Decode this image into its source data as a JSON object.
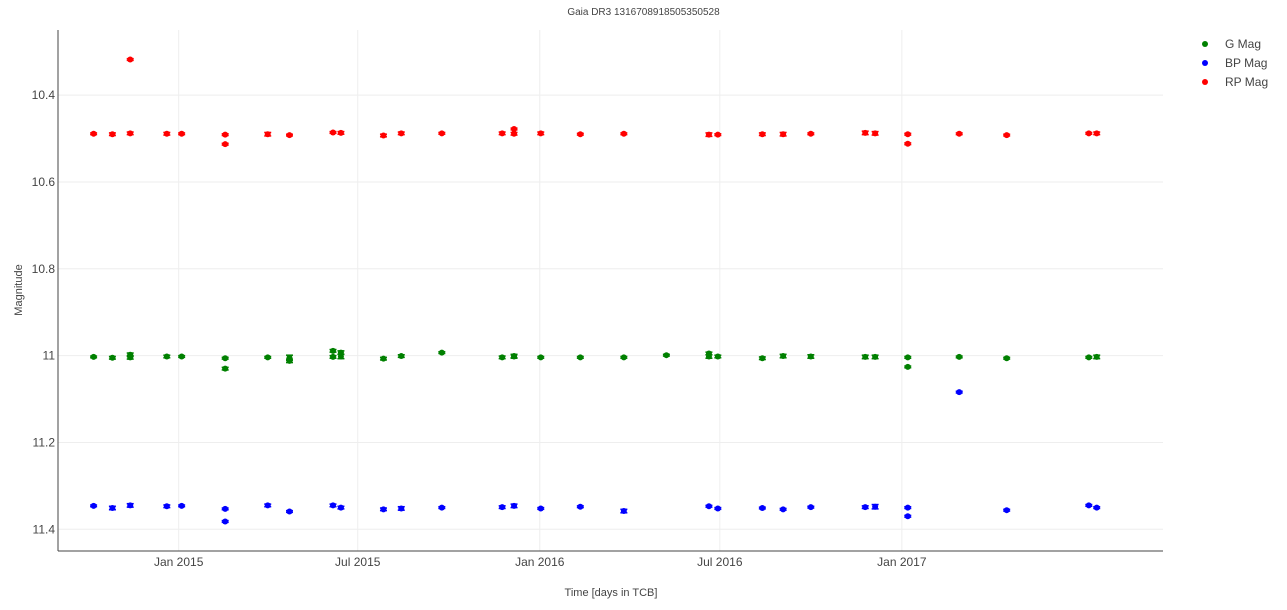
{
  "chart_data": {
    "type": "scatter",
    "title": "Gaia DR3 1316708918505350528",
    "xlabel": "Time [days in TCB]",
    "ylabel": "Magnitude",
    "x_axis_type": "date",
    "xlim": [
      "2014-09-01",
      "2017-09-22"
    ],
    "ylim": [
      11.45,
      10.25
    ],
    "y_reversed": true,
    "x_ticks": [
      {
        "value": "2015-01-01",
        "label": "Jan 2015"
      },
      {
        "value": "2015-07-01",
        "label": "Jul 2015"
      },
      {
        "value": "2016-01-01",
        "label": "Jan 2016"
      },
      {
        "value": "2016-07-01",
        "label": "Jul 2016"
      },
      {
        "value": "2017-01-01",
        "label": "Jan 2017"
      }
    ],
    "y_ticks": [
      {
        "value": 10.4,
        "label": "10.4"
      },
      {
        "value": 10.6,
        "label": "10.6"
      },
      {
        "value": 10.8,
        "label": "10.8"
      },
      {
        "value": 11,
        "label": "11"
      },
      {
        "value": 11.2,
        "label": "11.2"
      },
      {
        "value": 11.4,
        "label": "11.4"
      }
    ],
    "grid": true,
    "error_bars": true,
    "legend_position": "top-right",
    "series": [
      {
        "name": "G Mag",
        "color": "#008000",
        "points": [
          {
            "x": "2014-10-07",
            "y": 11.003,
            "err": 0.002
          },
          {
            "x": "2014-10-26",
            "y": 11.005,
            "err": 0.003
          },
          {
            "x": "2014-11-13",
            "y": 10.998,
            "err": 0.004
          },
          {
            "x": "2014-11-13",
            "y": 11.004,
            "err": 0.004
          },
          {
            "x": "2014-12-20",
            "y": 11.002,
            "err": 0.003
          },
          {
            "x": "2015-01-04",
            "y": 11.002,
            "err": 0.002
          },
          {
            "x": "2015-02-17",
            "y": 11.006,
            "err": 0.002
          },
          {
            "x": "2015-02-17",
            "y": 11.03,
            "err": 0.003
          },
          {
            "x": "2015-04-01",
            "y": 11.004,
            "err": 0.002
          },
          {
            "x": "2015-04-23",
            "y": 11.005,
            "err": 0.006
          },
          {
            "x": "2015-04-23",
            "y": 11.012,
            "err": 0.004
          },
          {
            "x": "2015-06-06",
            "y": 10.989,
            "err": 0.003
          },
          {
            "x": "2015-06-06",
            "y": 11.003,
            "err": 0.003
          },
          {
            "x": "2015-06-14",
            "y": 10.993,
            "err": 0.004
          },
          {
            "x": "2015-06-14",
            "y": 11.002,
            "err": 0.005
          },
          {
            "x": "2015-07-27",
            "y": 11.007,
            "err": 0.003
          },
          {
            "x": "2015-08-14",
            "y": 11.001,
            "err": 0.003
          },
          {
            "x": "2015-09-24",
            "y": 10.993,
            "err": 0.002
          },
          {
            "x": "2015-11-24",
            "y": 11.004,
            "err": 0.003
          },
          {
            "x": "2015-12-06",
            "y": 11.002,
            "err": 0.004
          },
          {
            "x": "2015-12-06",
            "y": 11.001,
            "err": 0.004
          },
          {
            "x": "2016-01-02",
            "y": 11.004,
            "err": 0.002
          },
          {
            "x": "2016-02-11",
            "y": 11.004,
            "err": 0.002
          },
          {
            "x": "2016-03-26",
            "y": 11.004,
            "err": 0.002
          },
          {
            "x": "2016-05-08",
            "y": 10.999,
            "err": 0.002
          },
          {
            "x": "2016-06-20",
            "y": 10.995,
            "err": 0.003
          },
          {
            "x": "2016-06-20",
            "y": 11.002,
            "err": 0.004
          },
          {
            "x": "2016-06-29",
            "y": 11.002,
            "err": 0.003
          },
          {
            "x": "2016-08-13",
            "y": 11.006,
            "err": 0.003
          },
          {
            "x": "2016-09-03",
            "y": 11.001,
            "err": 0.004
          },
          {
            "x": "2016-10-01",
            "y": 11.002,
            "err": 0.004
          },
          {
            "x": "2016-11-25",
            "y": 11.003,
            "err": 0.004
          },
          {
            "x": "2016-12-05",
            "y": 11.003,
            "err": 0.004
          },
          {
            "x": "2017-01-07",
            "y": 11.004,
            "err": 0.002
          },
          {
            "x": "2017-01-07",
            "y": 11.026,
            "err": 0.002
          },
          {
            "x": "2017-02-28",
            "y": 11.003,
            "err": 0.002
          },
          {
            "x": "2017-04-17",
            "y": 11.006,
            "err": 0.002
          },
          {
            "x": "2017-07-09",
            "y": 11.004,
            "err": 0.002
          },
          {
            "x": "2017-07-17",
            "y": 11.003,
            "err": 0.004
          }
        ]
      },
      {
        "name": "BP Mag",
        "color": "#0000ff",
        "points": [
          {
            "x": "2014-10-07",
            "y": 11.346,
            "err": 0.002
          },
          {
            "x": "2014-10-26",
            "y": 11.351,
            "err": 0.004
          },
          {
            "x": "2014-11-13",
            "y": 11.345,
            "err": 0.004
          },
          {
            "x": "2014-12-20",
            "y": 11.347,
            "err": 0.003
          },
          {
            "x": "2015-01-04",
            "y": 11.346,
            "err": 0.002
          },
          {
            "x": "2015-02-17",
            "y": 11.353,
            "err": 0.002
          },
          {
            "x": "2015-02-17",
            "y": 11.382,
            "err": 0.002
          },
          {
            "x": "2015-04-01",
            "y": 11.345,
            "err": 0.003
          },
          {
            "x": "2015-04-23",
            "y": 11.359,
            "err": 0.002
          },
          {
            "x": "2015-06-06",
            "y": 11.345,
            "err": 0.003
          },
          {
            "x": "2015-06-14",
            "y": 11.35,
            "err": 0.003
          },
          {
            "x": "2015-07-27",
            "y": 11.354,
            "err": 0.003
          },
          {
            "x": "2015-08-14",
            "y": 11.352,
            "err": 0.004
          },
          {
            "x": "2015-09-24",
            "y": 11.35,
            "err": 0.002
          },
          {
            "x": "2015-11-24",
            "y": 11.349,
            "err": 0.003
          },
          {
            "x": "2015-12-06",
            "y": 11.346,
            "err": 0.004
          },
          {
            "x": "2016-01-02",
            "y": 11.352,
            "err": 0.002
          },
          {
            "x": "2016-02-11",
            "y": 11.348,
            "err": 0.002
          },
          {
            "x": "2016-03-26",
            "y": 11.358,
            "err": 0.004
          },
          {
            "x": "2016-06-20",
            "y": 11.347,
            "err": 0.002
          },
          {
            "x": "2016-06-29",
            "y": 11.352,
            "err": 0.002
          },
          {
            "x": "2016-08-13",
            "y": 11.351,
            "err": 0.002
          },
          {
            "x": "2016-09-03",
            "y": 11.354,
            "err": 0.002
          },
          {
            "x": "2016-10-01",
            "y": 11.349,
            "err": 0.002
          },
          {
            "x": "2016-11-25",
            "y": 11.349,
            "err": 0.003
          },
          {
            "x": "2016-12-05",
            "y": 11.348,
            "err": 0.005
          },
          {
            "x": "2017-01-07",
            "y": 11.35,
            "err": 0.002
          },
          {
            "x": "2017-01-07",
            "y": 11.37,
            "err": 0.002
          },
          {
            "x": "2017-02-28",
            "y": 11.084,
            "err": 0.002
          },
          {
            "x": "2017-04-17",
            "y": 11.356,
            "err": 0.002
          },
          {
            "x": "2017-07-09",
            "y": 11.345,
            "err": 0.002
          },
          {
            "x": "2017-07-17",
            "y": 11.35,
            "err": 0.002
          }
        ]
      },
      {
        "name": "RP Mag",
        "color": "#ff0000",
        "points": [
          {
            "x": "2014-10-07",
            "y": 10.489,
            "err": 0.002
          },
          {
            "x": "2014-10-26",
            "y": 10.49,
            "err": 0.003
          },
          {
            "x": "2014-11-13",
            "y": 10.488,
            "err": 0.003
          },
          {
            "x": "2014-11-13",
            "y": 10.318,
            "err": 0.002
          },
          {
            "x": "2014-12-20",
            "y": 10.489,
            "err": 0.003
          },
          {
            "x": "2015-01-04",
            "y": 10.489,
            "err": 0.002
          },
          {
            "x": "2015-02-17",
            "y": 10.491,
            "err": 0.002
          },
          {
            "x": "2015-02-17",
            "y": 10.513,
            "err": 0.002
          },
          {
            "x": "2015-04-01",
            "y": 10.49,
            "err": 0.004
          },
          {
            "x": "2015-04-23",
            "y": 10.492,
            "err": 0.002
          },
          {
            "x": "2015-06-06",
            "y": 10.486,
            "err": 0.002
          },
          {
            "x": "2015-06-14",
            "y": 10.487,
            "err": 0.003
          },
          {
            "x": "2015-07-27",
            "y": 10.493,
            "err": 0.003
          },
          {
            "x": "2015-08-14",
            "y": 10.488,
            "err": 0.003
          },
          {
            "x": "2015-09-24",
            "y": 10.488,
            "err": 0.002
          },
          {
            "x": "2015-11-24",
            "y": 10.488,
            "err": 0.003
          },
          {
            "x": "2015-12-06",
            "y": 10.478,
            "err": 0.002
          },
          {
            "x": "2015-12-06",
            "y": 10.489,
            "err": 0.003
          },
          {
            "x": "2016-01-02",
            "y": 10.488,
            "err": 0.003
          },
          {
            "x": "2016-02-11",
            "y": 10.49,
            "err": 0.002
          },
          {
            "x": "2016-03-26",
            "y": 10.489,
            "err": 0.002
          },
          {
            "x": "2016-06-20",
            "y": 10.491,
            "err": 0.004
          },
          {
            "x": "2016-06-29",
            "y": 10.491,
            "err": 0.002
          },
          {
            "x": "2016-08-13",
            "y": 10.49,
            "err": 0.003
          },
          {
            "x": "2016-09-03",
            "y": 10.49,
            "err": 0.004
          },
          {
            "x": "2016-10-01",
            "y": 10.489,
            "err": 0.002
          },
          {
            "x": "2016-11-25",
            "y": 10.487,
            "err": 0.004
          },
          {
            "x": "2016-12-05",
            "y": 10.488,
            "err": 0.004
          },
          {
            "x": "2017-01-07",
            "y": 10.49,
            "err": 0.002
          },
          {
            "x": "2017-01-07",
            "y": 10.512,
            "err": 0.002
          },
          {
            "x": "2017-02-28",
            "y": 10.489,
            "err": 0.002
          },
          {
            "x": "2017-04-17",
            "y": 10.492,
            "err": 0.002
          },
          {
            "x": "2017-07-09",
            "y": 10.488,
            "err": 0.002
          },
          {
            "x": "2017-07-17",
            "y": 10.488,
            "err": 0.003
          }
        ]
      }
    ]
  }
}
